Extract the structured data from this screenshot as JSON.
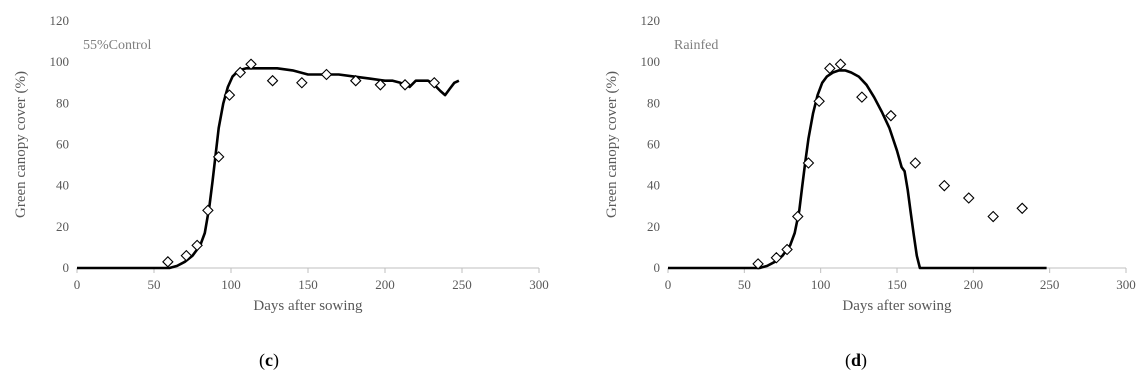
{
  "chart_data": [
    {
      "type": "line",
      "panel_label": "(c)",
      "inset_label": "55%Control",
      "xlabel": "Days after sowing",
      "ylabel": "Green canopy cover (%)",
      "xlim": [
        0,
        300
      ],
      "ylim": [
        0,
        120
      ],
      "xticks": [
        0,
        50,
        100,
        150,
        200,
        250,
        300
      ],
      "yticks": [
        0,
        20,
        40,
        60,
        80,
        100,
        120
      ],
      "grid": false,
      "series": [
        {
          "kind": "line",
          "color": "#000000",
          "x": [
            0,
            50,
            60,
            65,
            70,
            75,
            80,
            83,
            86,
            88,
            90,
            92,
            95,
            98,
            101,
            105,
            110,
            115,
            120,
            125,
            130,
            140,
            150,
            160,
            170,
            180,
            190,
            200,
            205,
            210,
            214,
            216,
            220,
            225,
            228,
            232,
            236,
            239,
            242,
            245,
            248
          ],
          "y": [
            0,
            0,
            0,
            1,
            3,
            6,
            11,
            17,
            30,
            42,
            55,
            68,
            80,
            88,
            93,
            96,
            97,
            97,
            97,
            97,
            97,
            96,
            94,
            94,
            94,
            93,
            92,
            91,
            91,
            90,
            89,
            88,
            91,
            91,
            91,
            89,
            86,
            84,
            87,
            90,
            91
          ]
        },
        {
          "kind": "scatter",
          "marker": "diamond-open",
          "color": "#000000",
          "x": [
            59,
            71,
            78,
            85,
            92,
            99,
            106,
            113,
            127,
            146,
            162,
            181,
            197,
            213,
            232
          ],
          "y": [
            3,
            6,
            11,
            28,
            54,
            84,
            95,
            99,
            91,
            90,
            94,
            91,
            89,
            89,
            90
          ]
        }
      ]
    },
    {
      "type": "line",
      "panel_label": "(d)",
      "inset_label": "Rainfed",
      "xlabel": "Days after sowing",
      "ylabel": "Green canopy cover (%)",
      "xlim": [
        0,
        300
      ],
      "ylim": [
        0,
        120
      ],
      "xticks": [
        0,
        50,
        100,
        150,
        200,
        250,
        300
      ],
      "yticks": [
        0,
        20,
        40,
        60,
        80,
        100,
        120
      ],
      "grid": false,
      "series": [
        {
          "kind": "line",
          "color": "#000000",
          "x": [
            0,
            50,
            60,
            65,
            70,
            75,
            80,
            83,
            86,
            88,
            90,
            92,
            95,
            98,
            101,
            104,
            108,
            112,
            116,
            120,
            125,
            130,
            135,
            140,
            145,
            150,
            153,
            155,
            157,
            159,
            161,
            163,
            165,
            248
          ],
          "y": [
            0,
            0,
            0,
            1,
            3,
            6,
            11,
            17,
            28,
            40,
            52,
            63,
            75,
            84,
            90,
            93,
            95,
            96,
            96,
            95,
            93,
            89,
            83,
            76,
            68,
            57,
            49,
            47,
            38,
            27,
            16,
            6,
            0,
            0
          ]
        },
        {
          "kind": "scatter",
          "marker": "diamond-open",
          "color": "#000000",
          "x": [
            59,
            71,
            78,
            85,
            92,
            99,
            106,
            113,
            127,
            146,
            162,
            181,
            197,
            213,
            232
          ],
          "y": [
            2,
            5,
            9,
            25,
            51,
            81,
            97,
            99,
            83,
            74,
            51,
            40,
            34,
            25,
            29
          ]
        }
      ]
    }
  ]
}
